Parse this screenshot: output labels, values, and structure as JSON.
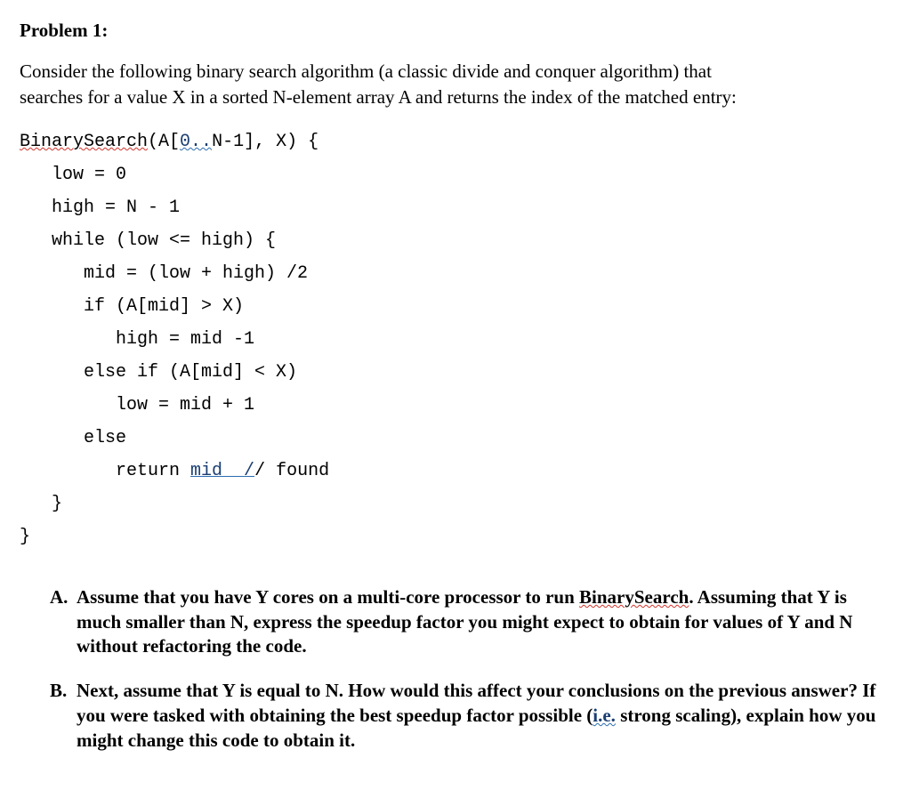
{
  "heading": "Problem 1:",
  "intro_line1": "Consider the following binary search algorithm (a classic divide and conquer algorithm) that",
  "intro_line2": "searches for a value X in a sorted N-element array A and returns the index of the matched entry:",
  "code": {
    "l01a": "BinarySearch",
    "l01b": "(A[",
    "l01c": "0..",
    "l01d": "N-1], X) {",
    "l02": "   low = 0",
    "l03": "   high = N - 1",
    "l04": "   while (low <= high) {",
    "l05": "      mid = (low + high) /2",
    "l06": "      if (A[mid] > X)",
    "l07": "         high = mid -1",
    "l08": "      else if (A[mid] < X)",
    "l09": "         low = mid + 1",
    "l10": "      else",
    "l11a": "         return ",
    "l11b": "mid  ",
    "l11c": "/",
    "l11d": "/ found",
    "l12": "   }",
    "l13": "}"
  },
  "qA": {
    "marker": "A.",
    "t1": "Assume that you have Y cores on a multi-core processor to run ",
    "t2": "BinarySearch",
    "t3": ". Assuming that Y is much smaller than N, express the speedup factor you might expect to obtain for values of Y and N without refactoring the code."
  },
  "qB": {
    "marker": "B.",
    "t1": "Next, assume that Y is equal to N.  How would this affect your conclusions on the previous answer?  If you were tasked with obtaining the best speedup factor possible (",
    "t2": "i.e.",
    "t3": " strong scaling), explain how you might change this code to obtain it."
  }
}
